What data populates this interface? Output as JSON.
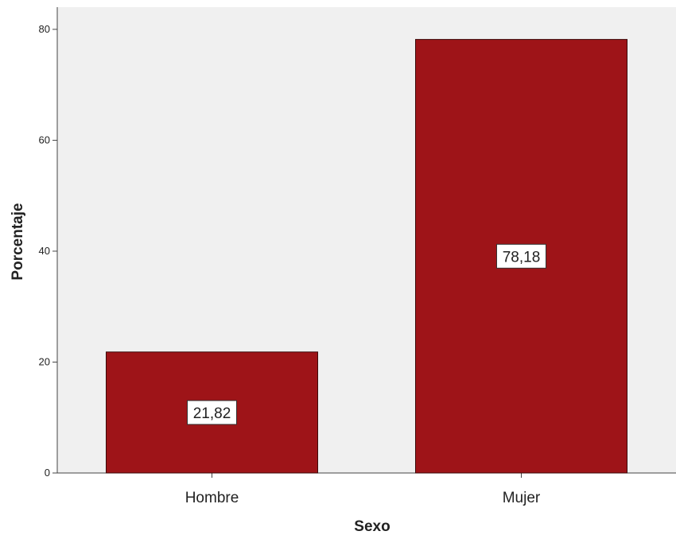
{
  "chart_data": {
    "type": "bar",
    "categories": [
      "Hombre",
      "Mujer"
    ],
    "values": [
      21.82,
      78.18
    ],
    "data_labels": [
      "21,82",
      "78,18"
    ],
    "xlabel": "Sexo",
    "ylabel": "Porcentaje",
    "ylim": [
      0,
      84
    ],
    "yticks": [
      0,
      20,
      40,
      60,
      80
    ],
    "grid": false,
    "colors": {
      "bar": "#9e1418",
      "bar_edge": "#3a0a0a",
      "plot_bg": "#f0f0f0",
      "axis": "#444444",
      "label_box": "#ffffff"
    }
  }
}
